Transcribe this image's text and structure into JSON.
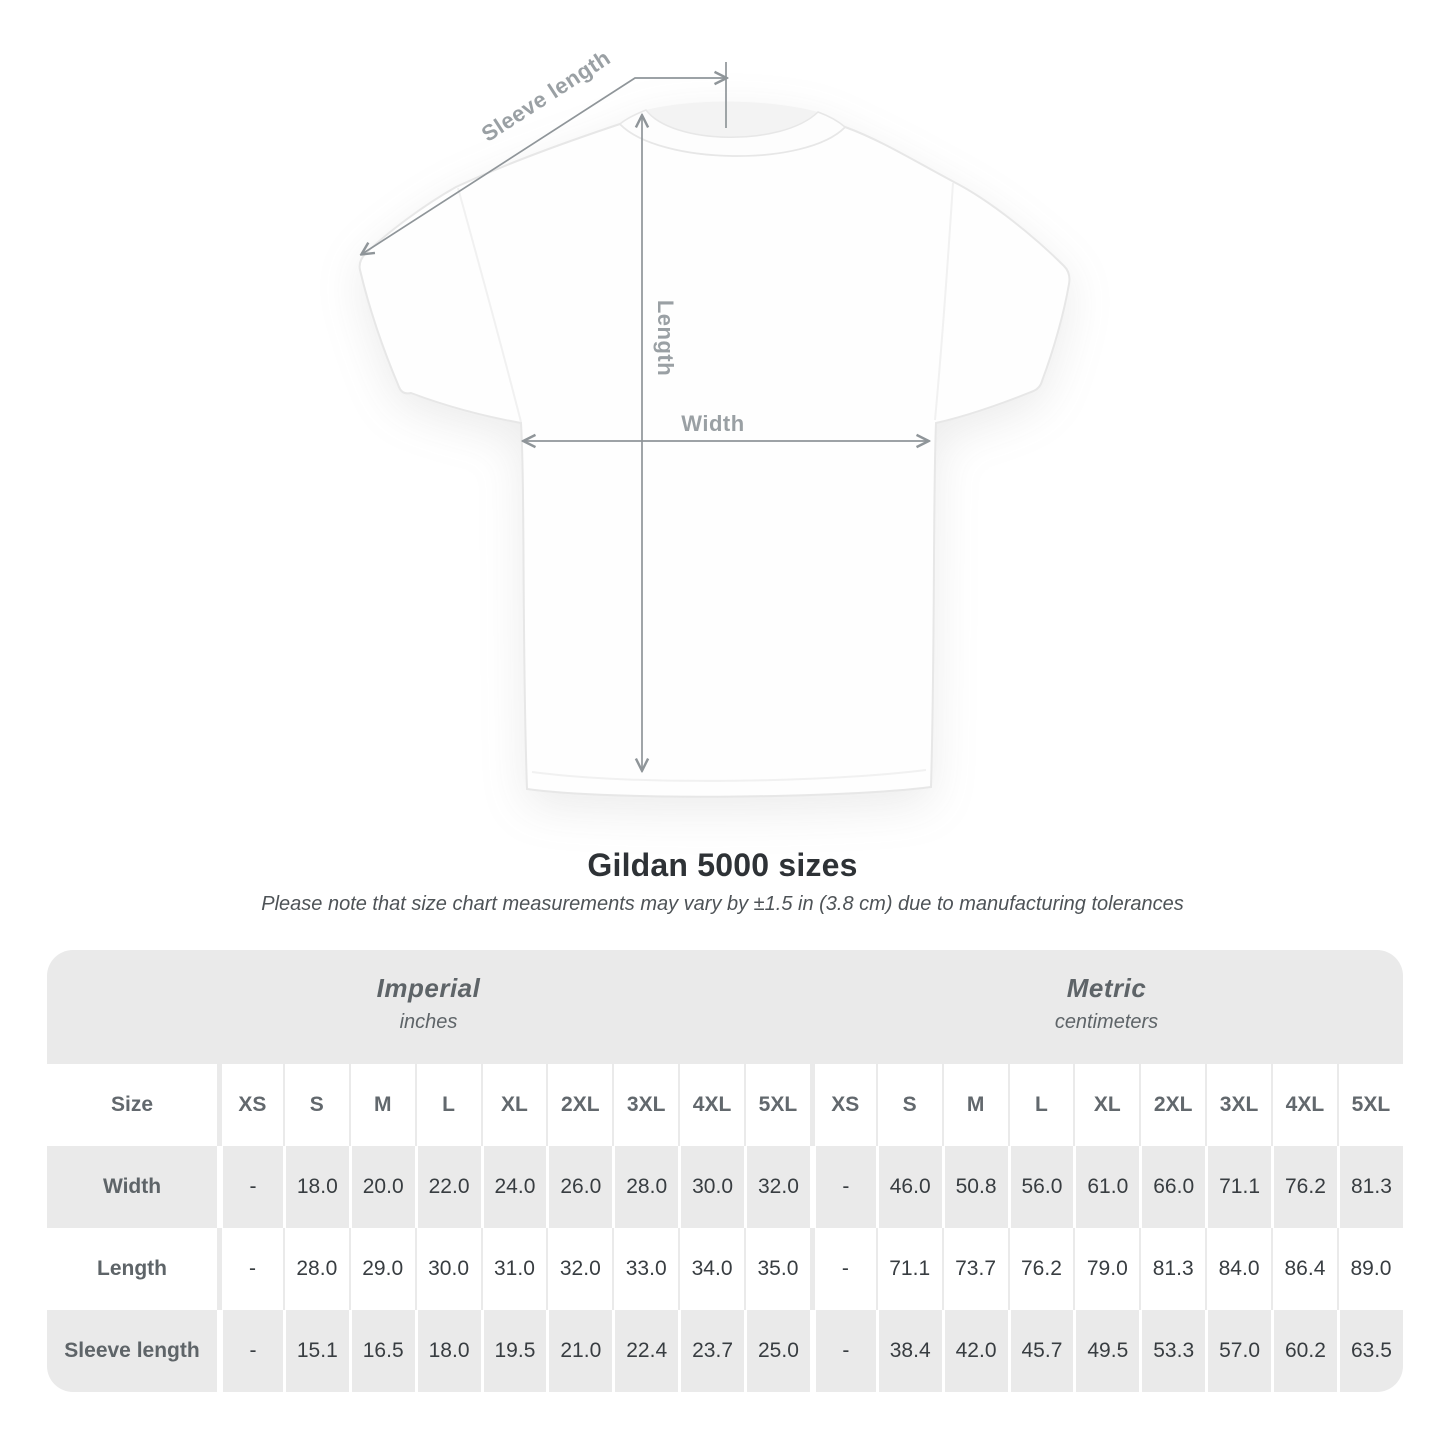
{
  "diagram": {
    "sleeve_length_label": "Sleeve length",
    "length_label": "Length",
    "width_label": "Width"
  },
  "heading": {
    "title": "Gildan 5000 sizes",
    "note": "Please note that size chart measurements may vary by ±1.5 in (3.8 cm) due to manufacturing tolerances"
  },
  "chart_data": {
    "type": "table",
    "title": "Gildan 5000 sizes",
    "note": "Please note that size chart measurements may vary by ±1.5 in (3.8 cm) due to manufacturing tolerances",
    "row_header": "Size",
    "sections": [
      {
        "label": "Imperial",
        "unit": "inches",
        "sizes": [
          "XS",
          "S",
          "M",
          "L",
          "XL",
          "2XL",
          "3XL",
          "4XL",
          "5XL"
        ]
      },
      {
        "label": "Metric",
        "unit": "centimeters",
        "sizes": [
          "XS",
          "S",
          "M",
          "L",
          "XL",
          "2XL",
          "3XL",
          "4XL",
          "5XL"
        ]
      }
    ],
    "rows": [
      {
        "label": "Width",
        "imperial": [
          "-",
          "18.0",
          "20.0",
          "22.0",
          "24.0",
          "26.0",
          "28.0",
          "30.0",
          "32.0"
        ],
        "metric": [
          "-",
          "46.0",
          "50.8",
          "56.0",
          "61.0",
          "66.0",
          "71.1",
          "76.2",
          "81.3"
        ]
      },
      {
        "label": "Length",
        "imperial": [
          "-",
          "28.0",
          "29.0",
          "30.0",
          "31.0",
          "32.0",
          "33.0",
          "34.0",
          "35.0"
        ],
        "metric": [
          "-",
          "71.1",
          "73.7",
          "76.2",
          "79.0",
          "81.3",
          "84.0",
          "86.4",
          "89.0"
        ]
      },
      {
        "label": "Sleeve length",
        "imperial": [
          "-",
          "15.1",
          "16.5",
          "18.0",
          "19.5",
          "21.0",
          "22.4",
          "23.7",
          "25.0"
        ],
        "metric": [
          "-",
          "38.4",
          "42.0",
          "45.7",
          "49.5",
          "53.3",
          "57.0",
          "60.2",
          "63.5"
        ]
      }
    ]
  },
  "colors": {
    "table_band": "#eaeaea",
    "row_stripe": "#eaeaea",
    "annotation_gray": "#9aa0a4",
    "value_text": "#383d41",
    "header_text": "#5e6468",
    "title_text": "#2e3236"
  }
}
